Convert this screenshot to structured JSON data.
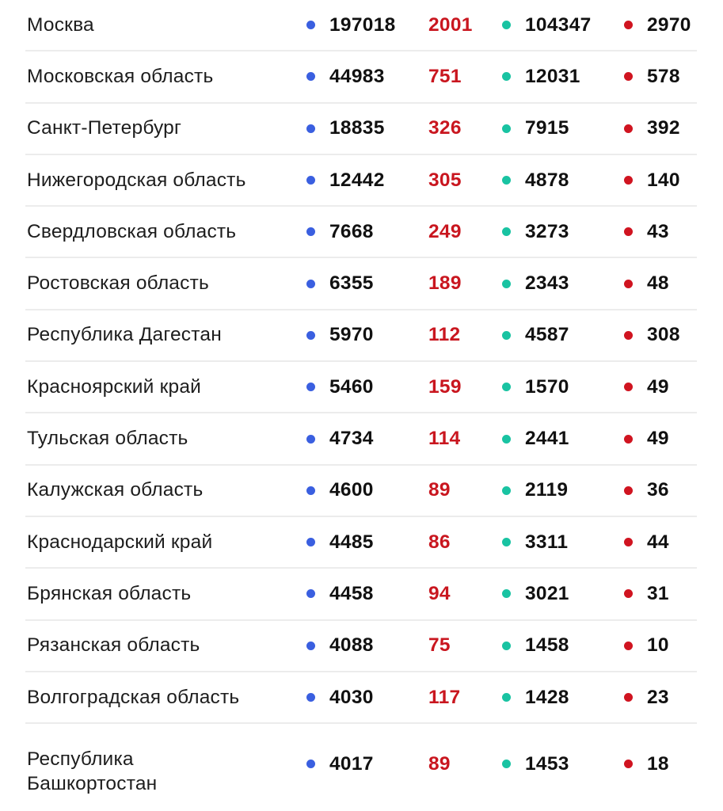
{
  "colors": {
    "cases_dot": "#3a5fe0",
    "new_cases_text": "#c9161f",
    "recovered_dot": "#19c3a2",
    "deaths_dot": "#d01420"
  },
  "icons": {
    "cases": "blue-dot-icon",
    "recovered": "teal-dot-icon",
    "deaths": "red-dot-icon"
  },
  "rows": [
    {
      "region": "Москва",
      "cases": "197018",
      "new": "2001",
      "recovered": "104347",
      "deaths": "2970"
    },
    {
      "region": "Московская область",
      "cases": "44983",
      "new": "751",
      "recovered": "12031",
      "deaths": "578"
    },
    {
      "region": "Санкт-Петербург",
      "cases": "18835",
      "new": "326",
      "recovered": "7915",
      "deaths": "392"
    },
    {
      "region": "Нижегородская область",
      "cases": "12442",
      "new": "305",
      "recovered": "4878",
      "deaths": "140"
    },
    {
      "region": "Свердловская область",
      "cases": "7668",
      "new": "249",
      "recovered": "3273",
      "deaths": "43"
    },
    {
      "region": "Ростовская область",
      "cases": "6355",
      "new": "189",
      "recovered": "2343",
      "deaths": "48"
    },
    {
      "region": "Республика Дагестан",
      "cases": "5970",
      "new": "112",
      "recovered": "4587",
      "deaths": "308"
    },
    {
      "region": "Красноярский край",
      "cases": "5460",
      "new": "159",
      "recovered": "1570",
      "deaths": "49"
    },
    {
      "region": "Тульская область",
      "cases": "4734",
      "new": "114",
      "recovered": "2441",
      "deaths": "49"
    },
    {
      "region": "Калужская область",
      "cases": "4600",
      "new": "89",
      "recovered": "2119",
      "deaths": "36"
    },
    {
      "region": "Краснодарский край",
      "cases": "4485",
      "new": "86",
      "recovered": "3311",
      "deaths": "44"
    },
    {
      "region": "Брянская область",
      "cases": "4458",
      "new": "94",
      "recovered": "3021",
      "deaths": "31"
    },
    {
      "region": "Рязанская область",
      "cases": "4088",
      "new": "75",
      "recovered": "1458",
      "deaths": "10"
    },
    {
      "region": "Волгоградская область",
      "cases": "4030",
      "new": "117",
      "recovered": "1428",
      "deaths": "23"
    },
    {
      "region": "Республика Башкортостан",
      "cases": "4017",
      "new": "89",
      "recovered": "1453",
      "deaths": "18"
    }
  ]
}
